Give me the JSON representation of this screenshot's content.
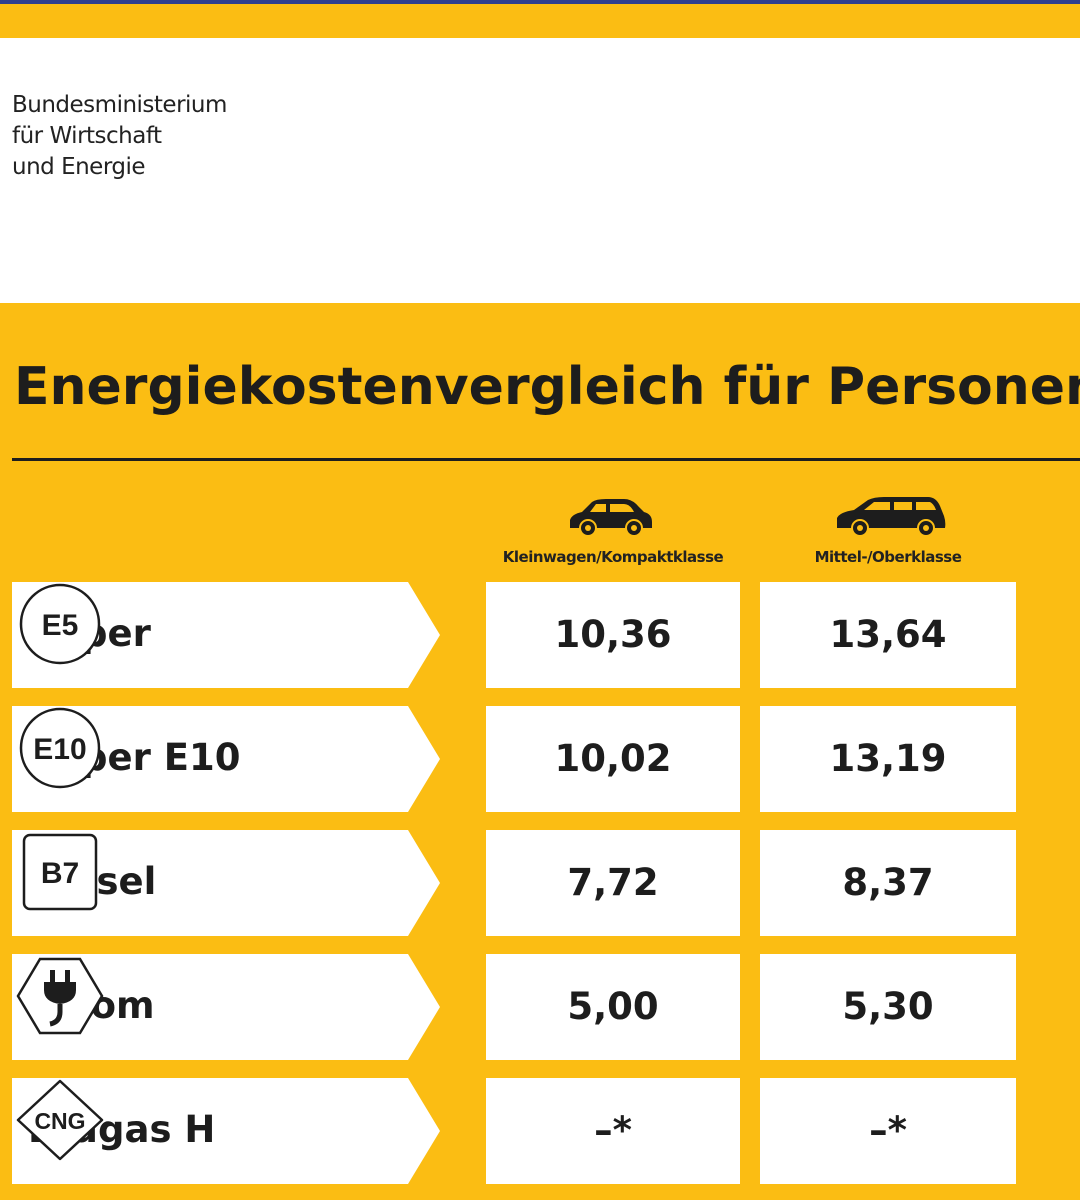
{
  "header": {
    "ministry_lines": [
      "Bundesministerium",
      "für Wirtschaft",
      "und Energie"
    ]
  },
  "title": "Energiekostenvergleich für Personen",
  "columns": [
    {
      "label": "Kleinwagen/Kompaktklasse",
      "icon": "small-car-icon"
    },
    {
      "label": "Mittel-/Oberklasse",
      "icon": "large-car-icon"
    }
  ],
  "rows": [
    {
      "fuel": "Super",
      "badge": "E5",
      "badge_shape": "circle",
      "small": "10,36",
      "large": "13,64"
    },
    {
      "fuel": "Super E10",
      "badge": "E10",
      "badge_shape": "circle",
      "small": "10,02",
      "large": "13,19"
    },
    {
      "fuel": "Diesel",
      "badge": "B7",
      "badge_shape": "square",
      "small": "7,72",
      "large": "8,37"
    },
    {
      "fuel": "Strom",
      "badge": "",
      "badge_shape": "hexagon-plug",
      "small": "5,00",
      "large": "5,30"
    },
    {
      "fuel": "Erdgas H",
      "badge": "CNG",
      "badge_shape": "diamond",
      "small": "–*",
      "large": "–*"
    }
  ],
  "colors": {
    "background": "#fbbd13",
    "panel": "#ffffff",
    "text": "#1d1d1d"
  }
}
